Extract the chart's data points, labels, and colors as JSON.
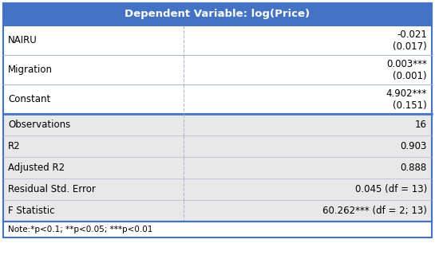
{
  "title": "Dependent Variable: log(Price)",
  "title_bg_color": "#4472C4",
  "title_text_color": "#FFFFFF",
  "header_fontsize": 9.5,
  "col_split": 0.42,
  "rows_upper": [
    {
      "label": "NAIRU",
      "coef": "-0.021",
      "se": "(0.017)"
    },
    {
      "label": "Migration",
      "coef": "0.003***",
      "se": "(0.001)"
    },
    {
      "label": "Constant",
      "coef": "4.902***",
      "se": "(0.151)"
    }
  ],
  "rows_lower": [
    {
      "label": "Observations",
      "value": "16"
    },
    {
      "label": "R2",
      "value": "0.903"
    },
    {
      "label": "Adjusted R2",
      "value": "0.888"
    },
    {
      "label": "Residual Std. Error",
      "value": "0.045 (df = 13)"
    },
    {
      "label": "F Statistic",
      "value": "60.262*** (df = 2; 13)"
    }
  ],
  "note": "Note:*p<0.1; **p<0.05; ***p<0.01",
  "upper_bg": "#FFFFFF",
  "lower_bg": "#E8E8E8",
  "note_bg": "#FFFFFF",
  "border_color": "#4472C4",
  "divider_color": "#B0B8D0",
  "text_fontsize": 8.5,
  "note_fontsize": 7.5
}
